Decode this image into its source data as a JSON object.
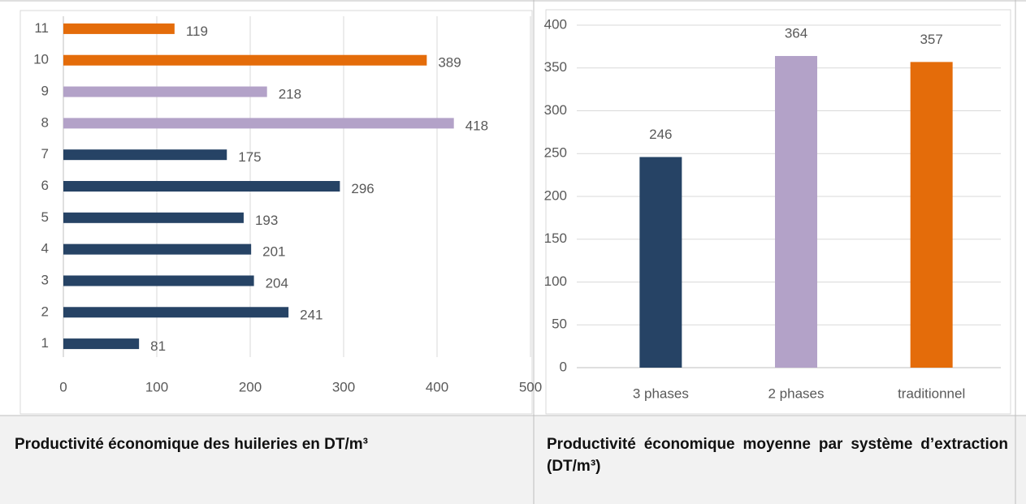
{
  "chart_data": [
    {
      "type": "barh",
      "categories": [
        "1",
        "2",
        "3",
        "4",
        "5",
        "6",
        "7",
        "8",
        "9",
        "10",
        "11"
      ],
      "values": [
        81,
        241,
        204,
        201,
        193,
        296,
        175,
        418,
        218,
        389,
        119
      ],
      "colors": [
        "#264365",
        "#264365",
        "#264365",
        "#264365",
        "#264365",
        "#264365",
        "#264365",
        "#b3a2c8",
        "#b3a2c8",
        "#e46c0a",
        "#e46c0a"
      ],
      "xlim": [
        0,
        500
      ],
      "xticks": [
        0,
        100,
        200,
        300,
        400,
        500
      ],
      "grid": true
    },
    {
      "type": "bar",
      "categories": [
        "3 phases",
        "2 phases",
        "traditionnel"
      ],
      "values": [
        246,
        364,
        357
      ],
      "colors": [
        "#264365",
        "#b3a2c8",
        "#e46c0a"
      ],
      "ylim": [
        0,
        400
      ],
      "yticks": [
        0,
        50,
        100,
        150,
        200,
        250,
        300,
        350,
        400
      ],
      "grid": true
    }
  ],
  "captions": [
    "Productivité économique des huileries en DT/m³",
    "Productivité économique moyenne par système d’extraction (DT/m³)"
  ]
}
